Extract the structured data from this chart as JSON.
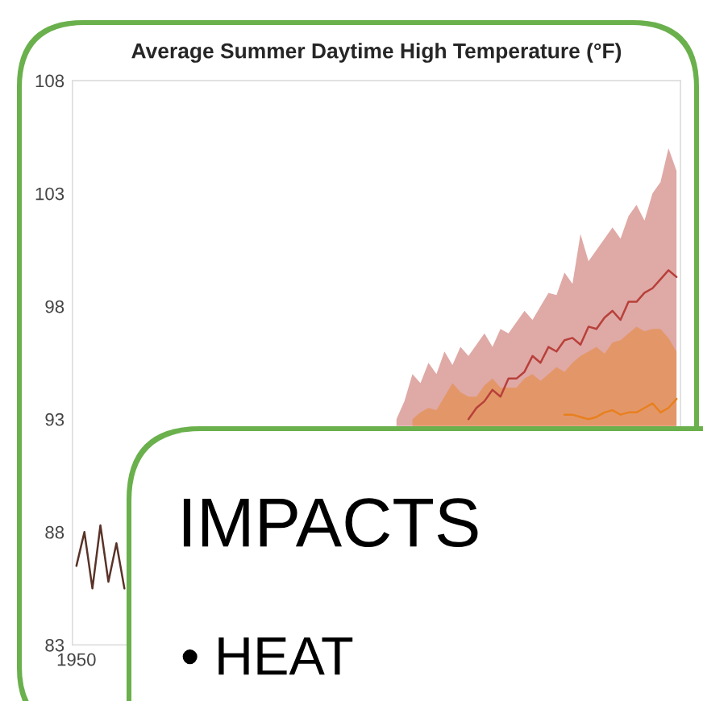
{
  "chart_data": {
    "type": "line",
    "title": "Average Summer Daytime High Temperature (°F)",
    "categories": [
      "1950",
      null,
      null,
      null,
      null,
      null,
      null,
      null,
      null,
      null,
      null,
      null,
      null,
      null,
      null,
      null,
      null,
      null,
      null,
      null,
      null,
      null,
      null,
      null,
      null,
      null,
      null,
      null,
      null,
      null,
      null,
      null,
      null,
      null,
      null,
      null,
      null,
      null,
      null,
      null,
      null,
      null,
      null,
      null,
      null,
      null,
      null,
      null,
      null,
      null,
      null,
      null,
      null,
      null,
      null,
      null,
      null,
      null,
      null,
      null,
      null,
      null,
      null,
      null,
      null,
      null,
      null,
      null,
      null,
      null,
      null,
      null,
      null,
      null,
      null,
      null
    ],
    "ylim": [
      83,
      108
    ],
    "yticks": [
      83,
      88,
      93,
      98,
      103,
      108
    ],
    "grid": false,
    "legend": false,
    "series": [
      {
        "type": "line",
        "color": "#b8403a",
        "values": [
          null,
          null,
          null,
          null,
          null,
          null,
          null,
          null,
          null,
          null,
          null,
          null,
          null,
          null,
          null,
          null,
          null,
          null,
          null,
          null,
          null,
          null,
          null,
          null,
          null,
          null,
          null,
          null,
          null,
          null,
          null,
          null,
          null,
          null,
          null,
          null,
          null,
          null,
          null,
          null,
          null,
          null,
          null,
          null,
          null,
          null,
          null,
          null,
          null,
          93.0,
          93.5,
          93.8,
          94.3,
          94.0,
          94.8,
          94.8,
          95.1,
          95.8,
          95.5,
          96.2,
          96.0,
          96.5,
          96.6,
          96.3,
          97.1,
          97.0,
          97.5,
          97.8,
          97.4,
          98.2,
          98.2,
          98.6,
          98.8,
          99.2,
          99.6,
          99.3
        ],
        "lower": [
          null,
          null,
          null,
          null,
          null,
          null,
          null,
          null,
          null,
          null,
          null,
          null,
          null,
          null,
          null,
          null,
          null,
          null,
          null,
          null,
          null,
          null,
          null,
          null,
          null,
          null,
          null,
          null,
          null,
          null,
          null,
          null,
          null,
          null,
          null,
          null,
          null,
          null,
          null,
          null,
          92.7,
          92.7,
          92.7,
          92.7,
          92.7,
          92.7,
          92.7,
          92.7,
          92.7,
          92.7,
          92.7,
          92.7,
          92.7,
          92.7,
          92.7,
          92.7,
          92.7,
          92.7,
          92.7,
          92.7,
          92.7,
          92.7,
          92.7,
          92.7,
          92.7,
          92.7,
          92.7,
          92.7,
          92.7,
          92.7,
          92.7,
          92.7,
          92.7,
          92.7,
          92.7,
          92.7
        ],
        "upper": [
          null,
          null,
          null,
          null,
          null,
          null,
          null,
          null,
          null,
          null,
          null,
          null,
          null,
          null,
          null,
          null,
          null,
          null,
          null,
          null,
          null,
          null,
          null,
          null,
          null,
          null,
          null,
          null,
          null,
          null,
          null,
          null,
          null,
          null,
          null,
          null,
          null,
          null,
          null,
          null,
          93.0,
          93.8,
          95.0,
          94.6,
          95.5,
          95.0,
          96.0,
          95.4,
          96.2,
          95.8,
          96.3,
          96.8,
          96.2,
          97.0,
          96.8,
          97.3,
          97.8,
          97.4,
          98.0,
          98.6,
          98.5,
          99.5,
          99.0,
          101.2,
          100.0,
          100.5,
          101.0,
          101.5,
          101.0,
          102.0,
          102.5,
          101.8,
          103.0,
          103.5,
          105.0,
          104.0
        ]
      },
      {
        "type": "line",
        "color": "#e8801f",
        "values": [
          null,
          null,
          null,
          null,
          null,
          null,
          null,
          null,
          null,
          null,
          null,
          null,
          null,
          null,
          null,
          null,
          null,
          null,
          null,
          null,
          null,
          null,
          null,
          null,
          null,
          null,
          null,
          null,
          null,
          null,
          null,
          null,
          null,
          null,
          null,
          null,
          null,
          null,
          null,
          null,
          null,
          null,
          null,
          null,
          null,
          null,
          null,
          null,
          null,
          null,
          null,
          null,
          null,
          null,
          null,
          null,
          null,
          null,
          null,
          null,
          null,
          93.2,
          93.2,
          93.1,
          93.0,
          93.1,
          93.3,
          93.4,
          93.2,
          93.3,
          93.3,
          93.5,
          93.7,
          93.3,
          93.5,
          93.9
        ],
        "lower": [
          null,
          null,
          null,
          null,
          null,
          null,
          null,
          null,
          null,
          null,
          null,
          null,
          null,
          null,
          null,
          null,
          null,
          null,
          null,
          null,
          null,
          null,
          null,
          null,
          null,
          null,
          null,
          null,
          null,
          null,
          null,
          null,
          null,
          null,
          null,
          null,
          null,
          null,
          null,
          null,
          null,
          null,
          92.7,
          92.7,
          92.7,
          92.7,
          92.7,
          92.7,
          92.7,
          92.7,
          92.7,
          92.7,
          92.7,
          92.7,
          92.7,
          92.7,
          92.7,
          92.7,
          92.7,
          92.7,
          92.7,
          92.7,
          92.7,
          92.7,
          92.7,
          92.7,
          92.7,
          92.7,
          92.7,
          92.7,
          92.7,
          92.7,
          92.7,
          92.7,
          92.7,
          92.7
        ],
        "upper": [
          null,
          null,
          null,
          null,
          null,
          null,
          null,
          null,
          null,
          null,
          null,
          null,
          null,
          null,
          null,
          null,
          null,
          null,
          null,
          null,
          null,
          null,
          null,
          null,
          null,
          null,
          null,
          null,
          null,
          null,
          null,
          null,
          null,
          null,
          null,
          null,
          null,
          null,
          null,
          null,
          null,
          null,
          93.0,
          93.3,
          93.5,
          93.4,
          94.0,
          94.6,
          94.2,
          94.0,
          94.0,
          94.5,
          94.8,
          94.4,
          94.4,
          94.4,
          94.8,
          95.0,
          94.7,
          95.0,
          95.3,
          95.1,
          95.5,
          95.8,
          96.0,
          96.2,
          95.9,
          96.4,
          96.5,
          96.8,
          97.1,
          96.9,
          97.0,
          97.0,
          96.6,
          96.0
        ]
      },
      {
        "type": "line",
        "color": "#5a3328",
        "values": [
          86.5,
          88.0,
          85.5,
          88.3,
          85.8,
          87.5,
          85.5,
          null,
          null,
          null,
          null,
          null,
          null,
          null,
          null,
          null,
          null,
          null,
          null,
          null,
          null,
          null,
          null,
          null,
          null,
          null,
          null,
          null,
          null,
          null,
          null,
          null,
          null,
          null,
          null,
          null,
          null,
          null,
          null,
          null,
          null,
          null,
          null,
          null,
          null,
          null,
          null,
          null,
          null,
          null,
          null,
          null,
          null,
          null,
          null,
          null,
          null,
          null,
          null,
          null,
          null,
          null,
          null,
          null,
          null,
          null,
          null,
          null,
          null,
          null,
          null,
          null,
          null,
          null,
          null,
          null
        ]
      }
    ],
    "annotations": [
      "IMPACTS",
      "• HEAT"
    ]
  }
}
